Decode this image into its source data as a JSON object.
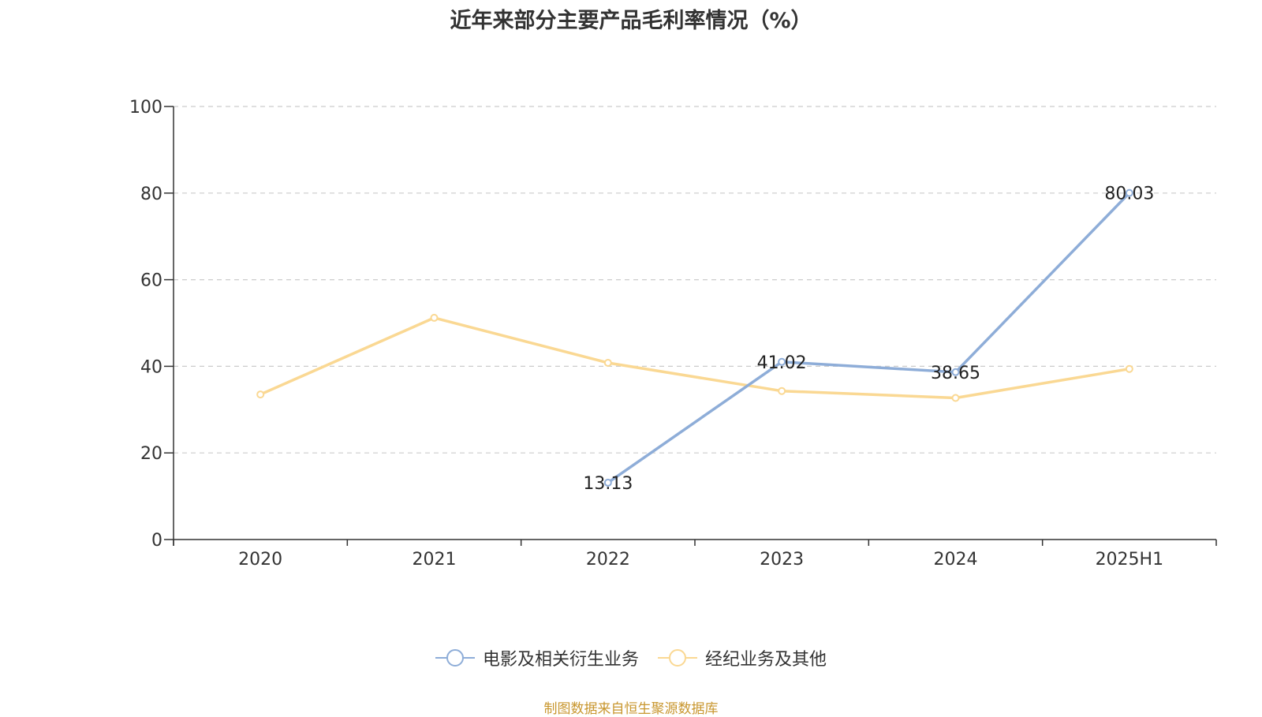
{
  "chart_data": {
    "type": "line",
    "title": "近年来部分主要产品毛利率情况（%）",
    "categories": [
      "2020",
      "2021",
      "2022",
      "2023",
      "2024",
      "2025H1"
    ],
    "ylim": [
      0,
      100
    ],
    "yticks": [
      0,
      20,
      40,
      60,
      80,
      100
    ],
    "grid": true,
    "legend_position": "bottom",
    "series": [
      {
        "name": "电影及相关衍生业务",
        "color": "#8eadd8",
        "values": [
          null,
          null,
          13.13,
          41.02,
          38.65,
          80.03
        ],
        "labels": [
          null,
          null,
          "13.13",
          "41.02",
          "38.65",
          "80.03"
        ]
      },
      {
        "name": "经纪业务及其他",
        "color": "#fad893",
        "values": [
          33.5,
          51.2,
          40.8,
          34.3,
          32.7,
          39.4
        ],
        "labels": [
          null,
          null,
          null,
          null,
          null,
          null
        ]
      }
    ]
  },
  "source_text": "制图数据来自恒生聚源数据库"
}
